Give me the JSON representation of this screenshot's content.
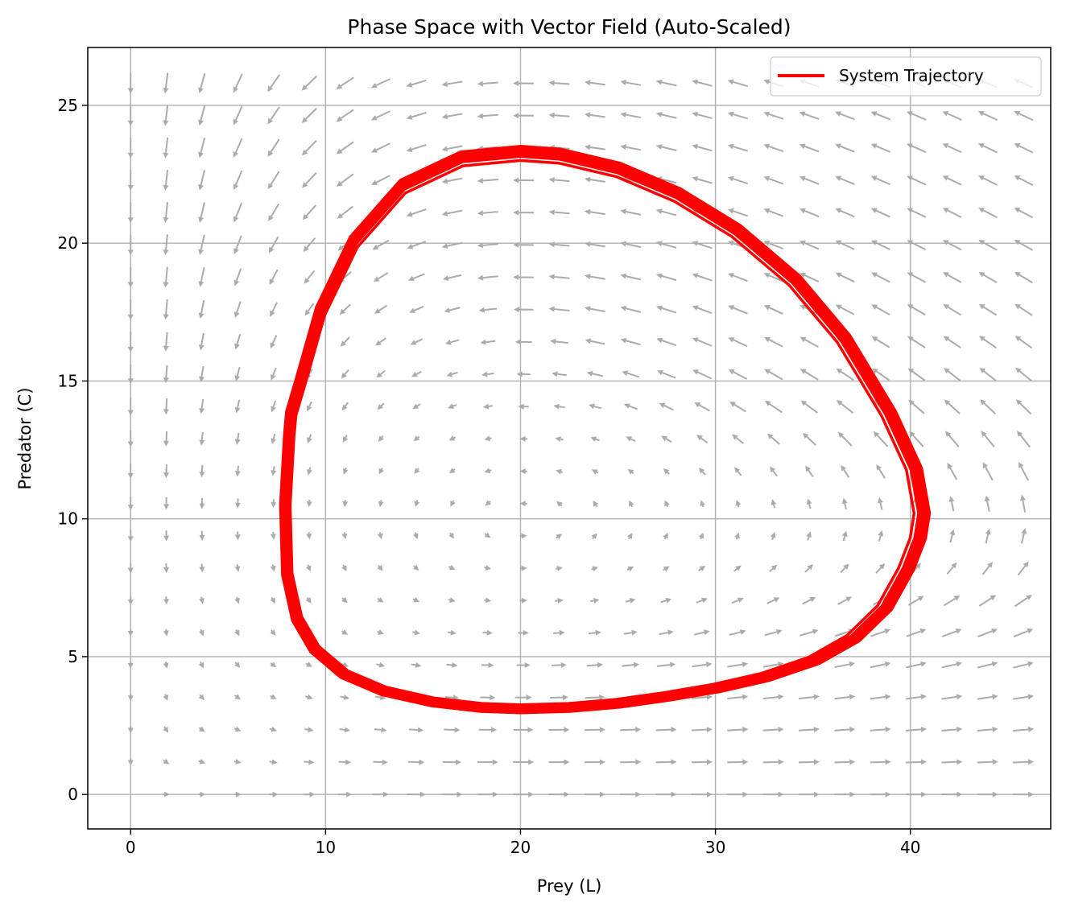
{
  "chart_data": {
    "type": "line",
    "title": "Phase Space with Vector Field (Auto-Scaled)",
    "xlabel": "Prey (L)",
    "ylabel": "Predator (C)",
    "xlim": [
      -2.2,
      47.2
    ],
    "ylim": [
      -1.25,
      27.1
    ],
    "xticks": [
      0,
      10,
      20,
      30,
      40
    ],
    "yticks": [
      0,
      5,
      10,
      15,
      20,
      25
    ],
    "grid": true,
    "legend_position": "upper right",
    "vector_field": {
      "label": "",
      "x_start": 0,
      "x_end": 45.8,
      "x_count": 26,
      "y_start": 0,
      "y_end": 25.8,
      "y_count": 23,
      "equilibrium": [
        20,
        10
      ],
      "color": "#ababab"
    },
    "series": [
      {
        "name": "System Trajectory",
        "color": "#ff0000",
        "x": [
          8.2,
          8.0,
          8.1,
          8.6,
          9.5,
          11.0,
          13.0,
          15.5,
          18.0,
          20.0,
          22.5,
          25.0,
          27.5,
          30.0,
          32.5,
          35.0,
          37.0,
          38.6,
          39.7,
          40.3,
          40.5,
          40.1,
          38.8,
          36.5,
          34.0,
          31.0,
          28.0,
          25.0,
          22.0,
          20.0,
          17.0,
          14.0,
          11.5,
          9.8,
          8.8,
          8.3,
          8.2
        ],
        "y": [
          13.0,
          10.5,
          8.0,
          6.4,
          5.3,
          4.4,
          3.8,
          3.4,
          3.2,
          3.15,
          3.2,
          3.35,
          3.6,
          3.9,
          4.3,
          4.9,
          5.7,
          6.8,
          8.2,
          9.3,
          10.2,
          11.8,
          13.8,
          16.5,
          18.6,
          20.4,
          21.7,
          22.6,
          23.1,
          23.2,
          23.0,
          22.0,
          20.0,
          17.5,
          15.0,
          13.8,
          13.0
        ]
      }
    ]
  }
}
